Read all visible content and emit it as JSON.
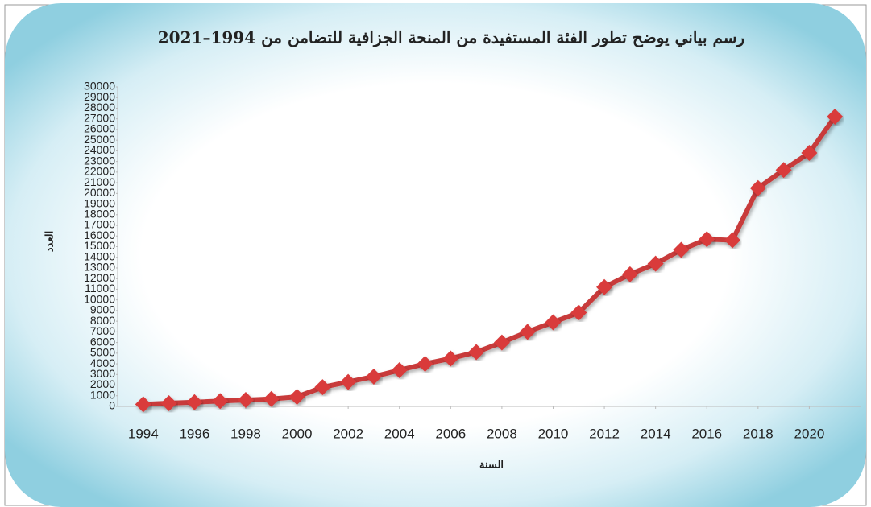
{
  "chart_data": {
    "type": "line",
    "title": "رسم بياني يوضح تطور الفئة المستفيدة من المنحة الجزافية للتضامن من 1994–2021",
    "x_label": "السنة",
    "y_label": "العدد",
    "x": [
      1994,
      1995,
      1996,
      1997,
      1998,
      1999,
      2000,
      2001,
      2002,
      2003,
      2004,
      2005,
      2006,
      2007,
      2008,
      2009,
      2010,
      2011,
      2012,
      2013,
      2014,
      2015,
      2016,
      2017,
      2018,
      2019,
      2020,
      2021
    ],
    "series": [
      {
        "name": "العدد",
        "color": "#c83a3a",
        "values": [
          200,
          300,
          400,
          500,
          600,
          700,
          900,
          1800,
          2300,
          2800,
          3400,
          4000,
          4500,
          5100,
          6000,
          7000,
          7900,
          8800,
          11200,
          12400,
          13400,
          14700,
          15700,
          15600,
          20500,
          22200,
          23800,
          27200
        ]
      }
    ],
    "xlim": [
      1993,
      2022
    ],
    "xticks": [
      1994,
      1996,
      1998,
      2000,
      2002,
      2004,
      2006,
      2008,
      2010,
      2012,
      2014,
      2016,
      2018,
      2020
    ],
    "ylim": [
      0,
      30000
    ],
    "yticks": [
      0,
      1000,
      2000,
      3000,
      4000,
      5000,
      6000,
      7000,
      8000,
      9000,
      10000,
      11000,
      12000,
      13000,
      14000,
      15000,
      16000,
      17000,
      18000,
      19000,
      20000,
      21000,
      22000,
      23000,
      24000,
      25000,
      26000,
      27000,
      28000,
      29000,
      30000
    ],
    "grid": false
  }
}
